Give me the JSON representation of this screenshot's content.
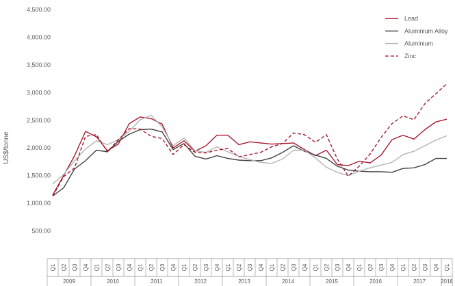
{
  "chart_data": {
    "type": "line",
    "title": "",
    "ylabel": "US$/tonne",
    "xlabel": "",
    "ylim": [
      0,
      4500
    ],
    "y_ticks": [
      "500.00",
      "1,000.00",
      "1,500.00",
      "2,000.00",
      "2,500.00",
      "3,000.00",
      "3,500.00",
      "4,000.00",
      "4,500.00"
    ],
    "y_tick_values": [
      500,
      1000,
      1500,
      2000,
      2500,
      3000,
      3500,
      4000,
      4500
    ],
    "grid": false,
    "legend_position": "top-right",
    "years": [
      {
        "label": "2009",
        "quarters": [
          "Q1",
          "Q2",
          "Q3",
          "Q4"
        ]
      },
      {
        "label": "2010",
        "quarters": [
          "Q1",
          "Q2",
          "Q3",
          "Q4"
        ]
      },
      {
        "label": "2011",
        "quarters": [
          "Q1",
          "Q2",
          "Q3",
          "Q4"
        ]
      },
      {
        "label": "2012",
        "quarters": [
          "Q1",
          "Q2",
          "Q3",
          "Q4"
        ]
      },
      {
        "label": "2013",
        "quarters": [
          "Q1",
          "Q2",
          "Q3",
          "Q4"
        ]
      },
      {
        "label": "2014",
        "quarters": [
          "Q1",
          "Q2",
          "Q3",
          "Q4"
        ]
      },
      {
        "label": "2015",
        "quarters": [
          "Q1",
          "Q2",
          "Q3",
          "Q4"
        ]
      },
      {
        "label": "2016",
        "quarters": [
          "Q1",
          "Q2",
          "Q3",
          "Q4"
        ]
      },
      {
        "label": "2017",
        "quarters": [
          "Q1",
          "Q2",
          "Q3",
          "Q4"
        ]
      },
      {
        "label": "2018",
        "quarters": [
          "Q1"
        ]
      }
    ],
    "series": [
      {
        "name": "Lead",
        "color": "#a6192e",
        "dash": "solid",
        "values": [
          1150,
          1500,
          1860,
          2300,
          2200,
          1950,
          2070,
          2440,
          2560,
          2530,
          2430,
          2000,
          2130,
          1940,
          2040,
          2230,
          2230,
          2060,
          2110,
          2090,
          2070,
          2080,
          2090,
          1970,
          1860,
          1960,
          1700,
          1680,
          1760,
          1730,
          1870,
          2150,
          2230,
          2160,
          2330,
          2470,
          2520
        ]
      },
      {
        "name": "Aluminium Alloy",
        "color": "#404040",
        "dash": "solid",
        "values": [
          1130,
          1280,
          1620,
          1770,
          1960,
          1930,
          2120,
          2250,
          2330,
          2340,
          2290,
          1970,
          2080,
          1850,
          1800,
          1860,
          1810,
          1780,
          1770,
          1770,
          1820,
          1920,
          2040,
          1940,
          1870,
          1810,
          1670,
          1600,
          1580,
          1570,
          1570,
          1560,
          1630,
          1640,
          1700,
          1810,
          1810
        ]
      },
      {
        "name": "Aluminium",
        "color": "#b4b4b4",
        "dash": "solid",
        "values": [
          1350,
          1520,
          1770,
          1980,
          2130,
          2060,
          2150,
          2300,
          2510,
          2590,
          2380,
          2040,
          2180,
          1950,
          1920,
          2020,
          1930,
          1850,
          1790,
          1740,
          1720,
          1800,
          1960,
          1960,
          1820,
          1650,
          1560,
          1500,
          1580,
          1640,
          1690,
          1740,
          1880,
          1940,
          2040,
          2140,
          2220
        ]
      },
      {
        "name": "Zinc",
        "color": "#a6192e",
        "dash": "dashed",
        "values": [
          1130,
          1480,
          1640,
          2210,
          2240,
          1930,
          2150,
          2350,
          2340,
          2210,
          2170,
          1880,
          2060,
          1920,
          1910,
          1960,
          1990,
          1840,
          1880,
          1920,
          2020,
          2080,
          2270,
          2240,
          2100,
          2240,
          1800,
          1490,
          1670,
          1890,
          2190,
          2440,
          2580,
          2510,
          2800,
          2980,
          3160
        ]
      }
    ]
  }
}
